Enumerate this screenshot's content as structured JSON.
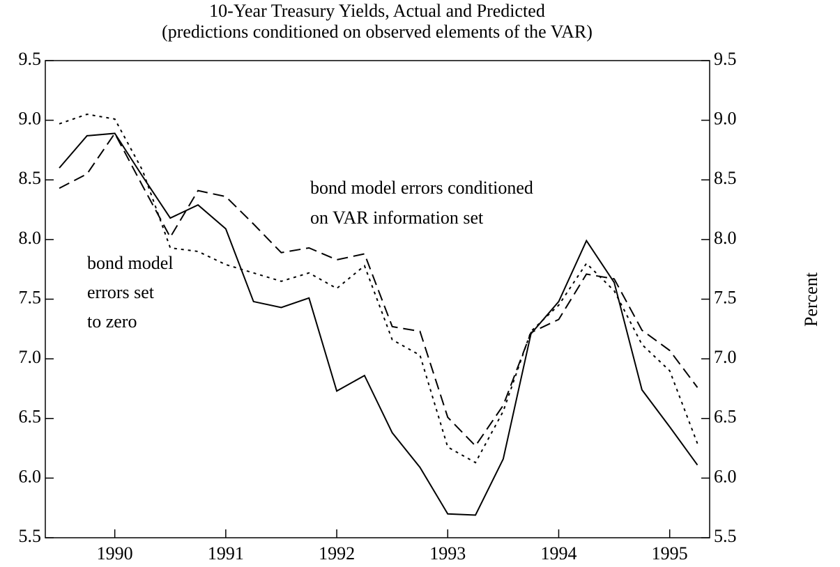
{
  "chart_data": {
    "type": "line",
    "title": "10-Year Treasury Yields, Actual and Predicted",
    "subtitle": "(predictions conditioned on observed elements of the VAR)",
    "y2_label": "Percent",
    "annotations": [
      [
        "bond model errors conditioned",
        "on VAR information set"
      ],
      [
        "bond model",
        "errors set",
        "to zero"
      ]
    ],
    "x": [
      1989.5,
      1989.75,
      1990.0,
      1990.25,
      1990.5,
      1990.75,
      1991.0,
      1991.25,
      1991.5,
      1991.75,
      1992.0,
      1992.25,
      1992.5,
      1992.75,
      1993.0,
      1993.25,
      1993.5,
      1993.75,
      1994.0,
      1994.25,
      1994.5,
      1994.75,
      1995.0,
      1995.25
    ],
    "series": [
      {
        "style": "solid",
        "color": "#000000",
        "values": [
          8.6,
          8.87,
          8.89,
          8.53,
          8.18,
          8.29,
          8.09,
          7.48,
          7.43,
          7.51,
          6.73,
          6.86,
          6.38,
          6.09,
          5.7,
          5.69,
          6.16,
          7.21,
          7.48,
          7.99,
          7.64,
          6.74,
          6.43,
          6.11
        ]
      },
      {
        "style": "dashed",
        "color": "#000000",
        "values": [
          8.43,
          8.55,
          8.89,
          8.45,
          8.02,
          8.41,
          8.36,
          8.13,
          7.89,
          7.93,
          7.83,
          7.88,
          7.27,
          7.23,
          6.51,
          6.27,
          6.61,
          7.22,
          7.33,
          7.71,
          7.67,
          7.24,
          7.07,
          6.76
        ]
      },
      {
        "style": "dotted",
        "color": "#000000",
        "values": [
          8.97,
          9.05,
          9.01,
          8.58,
          7.93,
          7.9,
          7.79,
          7.72,
          7.65,
          7.72,
          7.59,
          7.78,
          7.16,
          7.03,
          6.26,
          6.13,
          6.56,
          7.23,
          7.45,
          7.8,
          7.57,
          7.12,
          6.9,
          6.29
        ]
      }
    ],
    "xlim": [
      1989.374,
      1995.36
    ],
    "xticks": [
      {
        "value": 1990,
        "label": "1990"
      },
      {
        "value": 1991,
        "label": "1991"
      },
      {
        "value": 1992,
        "label": "1992"
      },
      {
        "value": 1993,
        "label": "1993"
      },
      {
        "value": 1994,
        "label": "1994"
      },
      {
        "value": 1995,
        "label": "1995"
      }
    ],
    "ylim": [
      5.5,
      9.5
    ],
    "yticks": [
      {
        "value": 5.5,
        "label": "5.5"
      },
      {
        "value": 6,
        "label": "6.0"
      },
      {
        "value": 6.5,
        "label": "6.5"
      },
      {
        "value": 7,
        "label": "7.0"
      },
      {
        "value": 7.5,
        "label": "7.5"
      },
      {
        "value": 8,
        "label": "8.0"
      },
      {
        "value": 8.5,
        "label": "8.5"
      },
      {
        "value": 9,
        "label": "9.0"
      },
      {
        "value": 9.5,
        "label": "9.5"
      }
    ],
    "y2lim": [
      5.5,
      9.5
    ],
    "y2ticks": [
      {
        "value": 5.5,
        "label": "5.5"
      },
      {
        "value": 6,
        "label": "6.0"
      },
      {
        "value": 6.5,
        "label": "6.5"
      },
      {
        "value": 7,
        "label": "7.0"
      },
      {
        "value": 7.5,
        "label": "7.5"
      },
      {
        "value": 8,
        "label": "8.0"
      },
      {
        "value": 8.5,
        "label": "8.5"
      },
      {
        "value": 9,
        "label": "9.0"
      },
      {
        "value": 9.5,
        "label": "9.5"
      }
    ]
  }
}
